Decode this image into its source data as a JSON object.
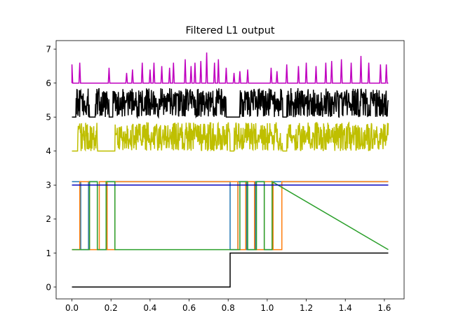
{
  "chart_data": {
    "type": "line",
    "title": "Filtered L1 output",
    "xlabel": "",
    "ylabel": "",
    "xlim": [
      -0.081,
      1.701
    ],
    "ylim": [
      -0.35,
      7.25
    ],
    "xticks": [
      0.0,
      0.2,
      0.4,
      0.6,
      0.8,
      1.0,
      1.2,
      1.4,
      1.6
    ],
    "xtick_labels": [
      "0.0",
      "0.2",
      "0.4",
      "0.6",
      "0.8",
      "1.0",
      "1.2",
      "1.4",
      "1.6"
    ],
    "yticks": [
      0,
      1,
      2,
      3,
      4,
      5,
      6,
      7
    ],
    "ytick_labels": [
      "0",
      "1",
      "2",
      "3",
      "4",
      "5",
      "6",
      "7"
    ],
    "grid": false,
    "legend": "none",
    "series": [
      {
        "kind": "step",
        "color": "#000000",
        "x": [
          0.0,
          0.81,
          0.81,
          1.62
        ],
        "y": [
          0.0,
          0.0,
          1.0,
          1.0
        ]
      },
      {
        "kind": "step",
        "color": "#1f77b4",
        "x": [
          0.0,
          0.03,
          0.03,
          0.045,
          0.045,
          0.085,
          0.085,
          0.13,
          0.13,
          0.18,
          0.18,
          0.81,
          0.81,
          0.85,
          0.85,
          0.895,
          0.895,
          0.94,
          0.94,
          0.985,
          0.985,
          1.03,
          1.03,
          1.62
        ],
        "y": [
          3.1,
          3.1,
          3.1,
          3.1,
          1.1,
          1.1,
          3.1,
          3.1,
          1.1,
          1.1,
          3.1,
          3.1,
          1.1,
          1.1,
          3.1,
          3.1,
          1.1,
          1.1,
          3.1,
          3.1,
          1.1,
          1.1,
          3.1,
          3.1
        ]
      },
      {
        "kind": "step",
        "color": "#ff7f0e",
        "x": [
          0.0,
          0.04,
          0.04,
          0.09,
          0.09,
          0.14,
          0.14,
          0.18,
          0.18,
          0.22,
          0.22,
          0.85,
          0.85,
          0.89,
          0.89,
          0.935,
          0.935,
          0.985,
          0.985,
          1.03,
          1.03,
          1.075,
          1.075,
          1.62
        ],
        "y": [
          1.1,
          1.1,
          3.1,
          3.1,
          1.1,
          1.1,
          3.1,
          3.1,
          1.1,
          1.1,
          3.1,
          3.1,
          1.1,
          1.1,
          3.1,
          3.1,
          1.1,
          1.1,
          3.1,
          3.1,
          1.1,
          1.1,
          3.1,
          3.1
        ]
      },
      {
        "kind": "step",
        "color": "#2ca02c",
        "x": [
          0.0,
          0.09,
          0.09,
          0.13,
          0.13,
          0.175,
          0.175,
          0.22,
          0.22,
          0.26,
          0.26,
          0.86,
          0.86,
          0.9,
          0.9,
          0.945,
          0.945,
          0.985,
          0.985,
          1.025,
          1.025,
          1.62
        ],
        "y": [
          1.1,
          1.1,
          3.1,
          3.1,
          1.1,
          1.1,
          3.1,
          3.1,
          1.1,
          1.1,
          1.1,
          1.1,
          3.1,
          3.1,
          1.1,
          1.1,
          3.1,
          3.1,
          1.1,
          1.1,
          3.1,
          1.1
        ]
      },
      {
        "kind": "flat",
        "color": "#0000bf",
        "x": [
          0.0,
          1.62
        ],
        "y": [
          3.0,
          3.0
        ]
      },
      {
        "kind": "noise",
        "color": "#bfbf00",
        "baseline": 4.0,
        "amplitude_max": 0.85,
        "x": [
          0.0,
          1.62
        ],
        "quiet_intervals": [
          [
            0.0,
            0.03
          ],
          [
            0.13,
            0.22
          ],
          [
            0.81,
            0.83
          ],
          [
            1.08,
            1.1
          ]
        ]
      },
      {
        "kind": "noise",
        "color": "#000000",
        "baseline": 5.0,
        "amplitude_max": 0.85,
        "x": [
          0.0,
          1.62
        ],
        "quiet_intervals": [
          [
            0.0,
            0.02
          ],
          [
            0.09,
            0.12
          ],
          [
            0.19,
            0.21
          ],
          [
            0.79,
            0.86
          ],
          [
            1.08,
            1.1
          ]
        ]
      },
      {
        "kind": "spikes",
        "color": "#bf00bf",
        "baseline": 6.0,
        "x": [
          0.0,
          1.62
        ],
        "spike_x": [
          0.0,
          0.04,
          0.19,
          0.28,
          0.31,
          0.36,
          0.4,
          0.42,
          0.46,
          0.5,
          0.52,
          0.58,
          0.61,
          0.63,
          0.66,
          0.69,
          0.73,
          0.75,
          0.79,
          0.83,
          0.86,
          0.9,
          1.02,
          1.05,
          1.1,
          1.16,
          1.2,
          1.25,
          1.3,
          1.33,
          1.38,
          1.43,
          1.48,
          1.52,
          1.58,
          1.61
        ],
        "spike_y": [
          0.55,
          0.6,
          0.45,
          0.3,
          0.4,
          0.6,
          0.4,
          0.6,
          0.5,
          0.45,
          0.6,
          0.7,
          0.5,
          0.6,
          0.65,
          0.9,
          0.6,
          0.7,
          0.45,
          0.3,
          0.35,
          0.4,
          0.45,
          0.35,
          0.55,
          0.5,
          0.6,
          0.5,
          0.6,
          0.65,
          0.7,
          0.6,
          0.8,
          0.6,
          0.55,
          0.55
        ]
      }
    ]
  }
}
